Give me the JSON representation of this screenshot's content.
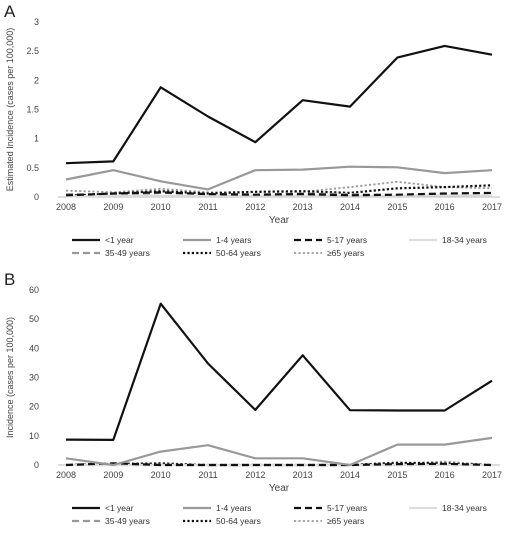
{
  "chart_data": [
    {
      "panel_label": "A",
      "type": "line",
      "xlabel": "Year",
      "ylabel": "Estimated Incidence (cases per 100,000)",
      "x": [
        "2008",
        "2009",
        "2010",
        "2011",
        "2012",
        "2013",
        "2014",
        "2015",
        "2016",
        "2017"
      ],
      "ylim": [
        0,
        3
      ],
      "yticks": [
        0,
        0.5,
        1,
        1.5,
        2,
        2.5,
        3
      ],
      "ytick_labels": [
        "0",
        "0.5",
        "1",
        "1.5",
        "2",
        "2.5",
        "3"
      ],
      "grid": false,
      "legend_position": "bottom",
      "series": [
        {
          "name": "<1 year",
          "values": [
            0.58,
            0.61,
            1.88,
            1.38,
            0.94,
            1.66,
            1.55,
            2.39,
            2.59,
            2.44
          ],
          "color": "#111111",
          "style": "solid",
          "width": 2.2
        },
        {
          "name": "1-4 years",
          "values": [
            0.3,
            0.46,
            0.27,
            0.13,
            0.46,
            0.47,
            0.52,
            0.51,
            0.41,
            0.46
          ],
          "color": "#999999",
          "style": "solid",
          "width": 2.2
        },
        {
          "name": "5-17 years",
          "values": [
            0.03,
            0.06,
            0.08,
            0.05,
            0.04,
            0.05,
            0.03,
            0.04,
            0.06,
            0.07
          ],
          "color": "#111111",
          "style": "dash",
          "width": 2.2
        },
        {
          "name": "18-34 years",
          "values": [
            0.01,
            0.02,
            0.02,
            0.02,
            0.02,
            0.02,
            0.02,
            0.02,
            0.03,
            0.03
          ],
          "color": "#dddddd",
          "style": "solid",
          "width": 2.2
        },
        {
          "name": "35-49 years",
          "values": [
            0.05,
            0.03,
            0.07,
            0.05,
            0.04,
            0.06,
            0.05,
            0.03,
            0.05,
            0.07
          ],
          "color": "#999999",
          "style": "dash",
          "width": 2.2
        },
        {
          "name": "50-64 years",
          "values": [
            0.02,
            0.06,
            0.1,
            0.06,
            0.09,
            0.1,
            0.07,
            0.15,
            0.17,
            0.2
          ],
          "color": "#111111",
          "style": "dot",
          "width": 2.2
        },
        {
          "name": "≥65 years",
          "values": [
            0.11,
            0.08,
            0.14,
            0.08,
            0.09,
            0.09,
            0.17,
            0.26,
            0.17,
            0.15
          ],
          "color": "#999999",
          "style": "dot",
          "width": 1.8
        }
      ]
    },
    {
      "panel_label": "B",
      "type": "line",
      "xlabel": "Year",
      "ylabel": "Incidence (cases per 100,000)",
      "x": [
        "2008",
        "2009",
        "2010",
        "2011",
        "2012",
        "2013",
        "2014",
        "2015",
        "2016",
        "2017"
      ],
      "ylim": [
        0,
        60
      ],
      "yticks": [
        0,
        10,
        20,
        30,
        40,
        50,
        60
      ],
      "ytick_labels": [
        "0",
        "10",
        "20",
        "30",
        "40",
        "50",
        "60"
      ],
      "grid": false,
      "legend_position": "bottom",
      "series": [
        {
          "name": "<1 year",
          "values": [
            8.7,
            8.6,
            55.3,
            34.8,
            18.9,
            37.6,
            18.8,
            18.7,
            18.7,
            28.9
          ],
          "color": "#111111",
          "style": "solid",
          "width": 2.2
        },
        {
          "name": "1-4 years",
          "values": [
            2.3,
            0.0,
            4.6,
            6.8,
            2.3,
            2.3,
            0.0,
            7.0,
            7.0,
            9.3
          ],
          "color": "#999999",
          "style": "solid",
          "width": 2.2
        },
        {
          "name": "5-17 years",
          "values": [
            0.0,
            0.6,
            0.0,
            0.0,
            0.0,
            0.0,
            0.0,
            0.3,
            0.4,
            0.0
          ],
          "color": "#111111",
          "style": "dash",
          "width": 2.2
        },
        {
          "name": "18-34 years",
          "values": [
            0.0,
            0.0,
            0.0,
            0.0,
            0.0,
            0.0,
            0.0,
            0.0,
            0.0,
            0.0
          ],
          "color": "#dddddd",
          "style": "solid",
          "width": 2.2
        },
        {
          "name": "35-49 years",
          "values": [
            0.0,
            0.0,
            0.0,
            0.0,
            0.0,
            0.0,
            0.0,
            0.0,
            0.0,
            0.0
          ],
          "color": "#999999",
          "style": "dash",
          "width": 2.2
        },
        {
          "name": "50-64 years",
          "values": [
            0.0,
            0.4,
            0.5,
            0.0,
            0.0,
            0.0,
            0.0,
            0.8,
            0.5,
            0.0
          ],
          "color": "#111111",
          "style": "dot",
          "width": 2.2
        },
        {
          "name": "≥65 years",
          "values": [
            0.0,
            0.0,
            0.7,
            0.0,
            0.0,
            0.0,
            0.0,
            0.6,
            1.2,
            0.0
          ],
          "color": "#999999",
          "style": "dot",
          "width": 1.8
        }
      ]
    }
  ]
}
